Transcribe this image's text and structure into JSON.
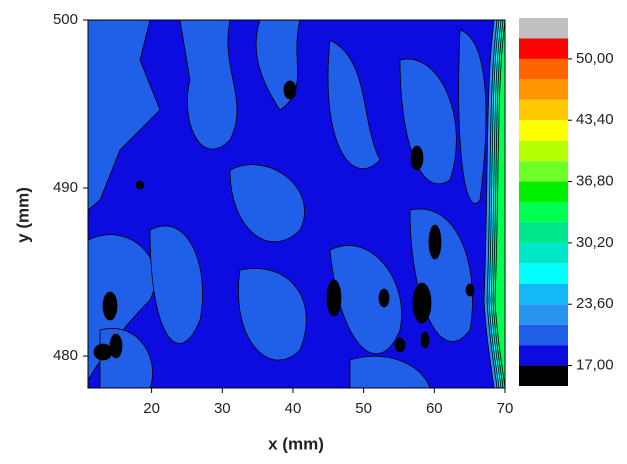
{
  "chart_data": {
    "type": "contour",
    "xlabel": "x (mm)",
    "ylabel": "y (mm)",
    "xlim": [
      11,
      70
    ],
    "ylim": [
      478.1,
      500
    ],
    "xticks": [
      20,
      30,
      40,
      50,
      60,
      70
    ],
    "yticks": [
      480,
      490,
      500
    ],
    "colorbar": {
      "levels": [
        14.8,
        17,
        19.2,
        21.4,
        23.6,
        25.8,
        28,
        30.2,
        32.4,
        34.6,
        36.8,
        39,
        41.2,
        43.4,
        45.6,
        47.8,
        50,
        52.2,
        54.4
      ],
      "colors": [
        "#000000",
        "#0c0ce0",
        "#2060e8",
        "#2894f0",
        "#14b8f4",
        "#00ffff",
        "#00e6c8",
        "#00e68c",
        "#00ff50",
        "#00f000",
        "#6eff28",
        "#b4ff00",
        "#ffff00",
        "#ffc800",
        "#ff9600",
        "#ff6400",
        "#ff0000",
        "#c0c0c0"
      ],
      "ticks": [
        {
          "value": 17,
          "label": "17,00"
        },
        {
          "value": 23.6,
          "label": "23,60"
        },
        {
          "value": 30.2,
          "label": "30,20"
        },
        {
          "value": 36.8,
          "label": "36,80"
        },
        {
          "value": 43.4,
          "label": "43,40"
        },
        {
          "value": 50,
          "label": "50,00"
        }
      ]
    }
  }
}
